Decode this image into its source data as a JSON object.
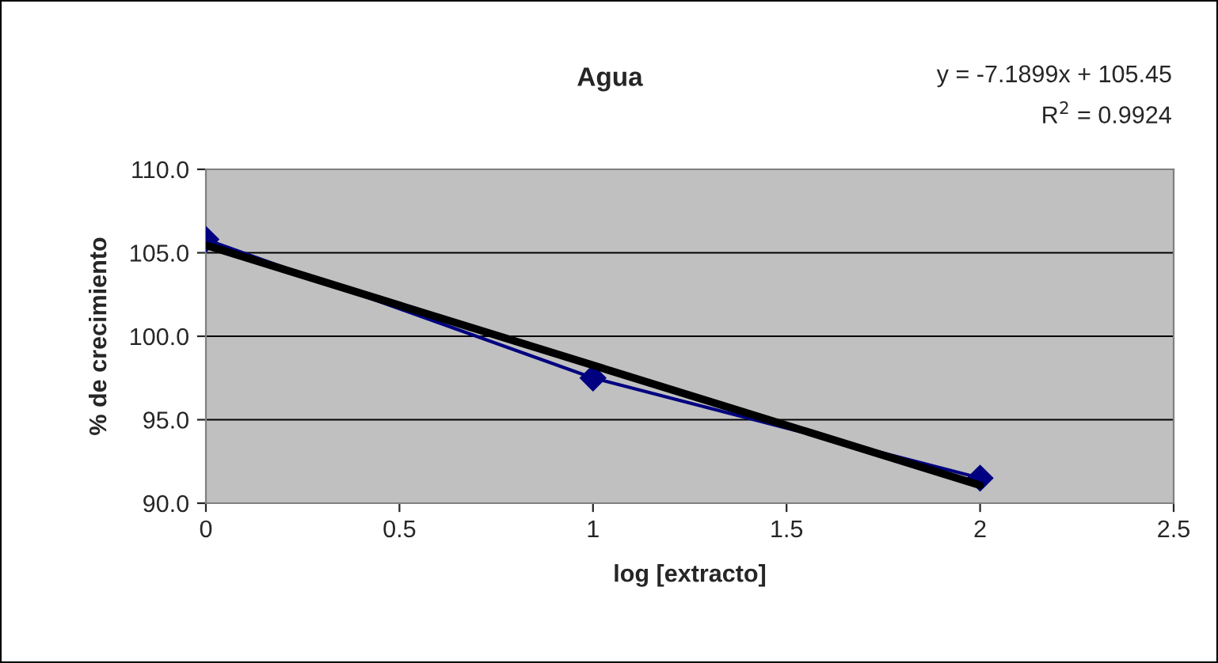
{
  "chart_data": {
    "type": "line",
    "title": "Agua",
    "xlabel": "log [extracto]",
    "ylabel": "% de crecimiento",
    "x": [
      0,
      1,
      2
    ],
    "series": [
      {
        "color": "#000080",
        "values": [
          105.8,
          97.5,
          91.5
        ],
        "marker": "diamond"
      },
      {
        "type": "line",
        "color": "#000000",
        "x": [
          0,
          2
        ],
        "values": [
          105.45,
          91.07
        ],
        "marker": "none"
      }
    ],
    "xlim": [
      0,
      2.5
    ],
    "xticks": [
      0,
      0.5,
      1,
      1.5,
      2,
      2.5
    ],
    "ylim": [
      90,
      110
    ],
    "yticks": [
      {
        "value": 90,
        "label": "90.0"
      },
      {
        "value": 95,
        "label": "95.0"
      },
      {
        "value": 100,
        "label": "100.0"
      },
      {
        "value": 105,
        "label": "105.0"
      },
      {
        "value": 110,
        "label": "110.0"
      }
    ],
    "grid": "y",
    "legend": false,
    "annotations": [
      "y = -7.1899x + 105.45",
      "R$^{2}$ = 0.9924"
    ]
  }
}
